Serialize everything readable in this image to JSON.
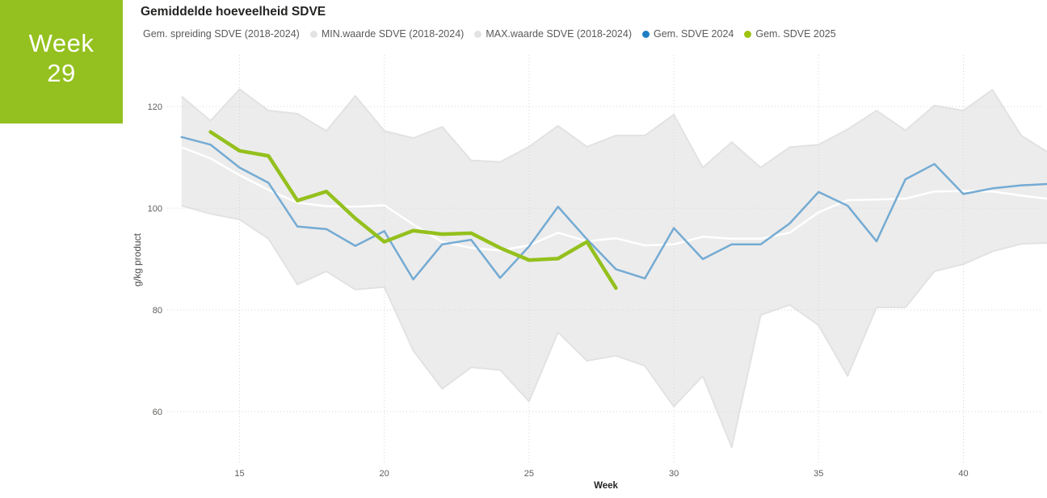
{
  "badge": {
    "line1": "Week",
    "line2": "29",
    "bg_color": "#94C11F",
    "text_color": "#FFFFFF"
  },
  "title": "Gemiddelde hoeveelheid SDVE",
  "legend": {
    "items": [
      {
        "id": "spread",
        "label": "Gem. spreiding SDVE (2018-2024)",
        "marker_color": "#FFFFFF"
      },
      {
        "id": "min",
        "label": "MIN.waarde SDVE (2018-2024)",
        "marker_color": "#E3E3E3"
      },
      {
        "id": "max",
        "label": "MAX.waarde SDVE (2018-2024)",
        "marker_color": "#E3E3E3"
      },
      {
        "id": "mean2024",
        "label": "Gem. SDVE 2024",
        "marker_color": "#1F7EC2"
      },
      {
        "id": "mean2025",
        "label": "Gem. SDVE 2025",
        "marker_color": "#9EC412"
      }
    ]
  },
  "chart_data": {
    "type": "line",
    "title": "Gemiddelde hoeveelheid SDVE",
    "xlabel": "Week",
    "ylabel": "g/kg product",
    "x_ticks": [
      15,
      20,
      25,
      30,
      35,
      40
    ],
    "y_ticks": [
      60,
      80,
      100,
      120
    ],
    "x_range": [
      13,
      43
    ],
    "y_range": [
      50,
      130
    ],
    "grid": "dotted",
    "legend_position": "top",
    "colors": {
      "band_fill": "#ECECEC",
      "band_edge": "#E2E2E2",
      "spread_line": "#FFFFFF",
      "line_2024": "#74ABD3",
      "line_2025": "#94C01D",
      "gridline": "#D6D6D6",
      "tick_text": "#605E5C"
    },
    "band": {
      "name": "Gem. spreiding SDVE (2018-2024)",
      "upper": "max",
      "lower": "min"
    },
    "series": [
      {
        "id": "max",
        "name": "MAX.waarde SDVE (2018-2024)",
        "x": [
          13,
          14,
          15,
          16,
          17,
          18,
          19,
          20,
          21,
          22,
          23,
          24,
          25,
          26,
          27,
          28,
          29,
          30,
          31,
          32,
          33,
          34,
          35,
          36,
          37,
          38,
          39,
          40,
          41,
          42,
          43
        ],
        "values": [
          122,
          117.2,
          123.4,
          119.2,
          118.6,
          115.2,
          122.1,
          115.2,
          113.8,
          116,
          109.4,
          109.1,
          112.1,
          116.2,
          112.1,
          114.3,
          114.3,
          118.4,
          108,
          113,
          108,
          112,
          112.5,
          115.5,
          119.2,
          115.3,
          120.2,
          119.2,
          123.3,
          114.3,
          110.7
        ]
      },
      {
        "id": "min",
        "name": "MIN.waarde SDVE (2018-2024)",
        "x": [
          13,
          14,
          15,
          16,
          17,
          18,
          19,
          20,
          21,
          22,
          23,
          24,
          25,
          26,
          27,
          28,
          29,
          30,
          31,
          32,
          33,
          34,
          35,
          36,
          37,
          38,
          39,
          40,
          41,
          42,
          43
        ],
        "values": [
          100.5,
          98.9,
          97.8,
          94,
          85,
          87.6,
          84,
          84.5,
          72,
          64.5,
          68.7,
          68.2,
          62,
          75.6,
          70,
          71,
          69,
          61,
          67,
          53,
          79,
          81,
          77,
          67,
          80.5,
          80.5,
          87.6,
          89,
          91.5,
          93,
          93.2
        ]
      },
      {
        "id": "spread",
        "name": "Gem. spreiding SDVE (2018-2024)",
        "x": [
          13,
          14,
          15,
          16,
          17,
          18,
          19,
          20,
          21,
          22,
          23,
          24,
          25,
          26,
          27,
          28,
          29,
          30,
          31,
          32,
          33,
          34,
          35,
          36,
          37,
          38,
          39,
          40,
          41,
          42,
          43
        ],
        "values": [
          112,
          109.8,
          106.5,
          103.6,
          101.1,
          100.4,
          100.3,
          100.6,
          96.8,
          93.4,
          92.2,
          91.7,
          92.7,
          95.2,
          93.5,
          94.1,
          92.7,
          92.9,
          94.4,
          94,
          94,
          95.2,
          99.2,
          101.6,
          101.7,
          101.9,
          103.3,
          103.4,
          103.3,
          102.5,
          101.8
        ]
      },
      {
        "id": "mean2024",
        "name": "Gem. SDVE 2024",
        "x": [
          13,
          14,
          15,
          16,
          17,
          18,
          19,
          20,
          21,
          22,
          23,
          24,
          25,
          26,
          27,
          28,
          29,
          30,
          31,
          32,
          33,
          34,
          35,
          36,
          37,
          38,
          39,
          40,
          41,
          42,
          43
        ],
        "values": [
          114,
          112.5,
          108,
          105,
          96.4,
          95.9,
          92.6,
          95.5,
          86,
          92.9,
          93.8,
          86.3,
          92.5,
          100.3,
          93.9,
          88,
          86.2,
          96.1,
          90,
          92.9,
          92.9,
          97,
          103.2,
          100.5,
          93.5,
          105.7,
          108.7,
          102.8,
          103.9,
          104.5,
          104.8
        ]
      },
      {
        "id": "mean2025",
        "name": "Gem. SDVE 2025",
        "x": [
          14,
          15,
          16,
          17,
          18,
          19,
          20,
          21,
          22,
          23,
          24,
          25,
          26,
          27,
          28
        ],
        "values": [
          115,
          111.3,
          110.3,
          101.5,
          103.3,
          98,
          93.4,
          95.6,
          94.9,
          95.1,
          92.2,
          89.8,
          90.1,
          93.4,
          84.3
        ]
      }
    ]
  }
}
